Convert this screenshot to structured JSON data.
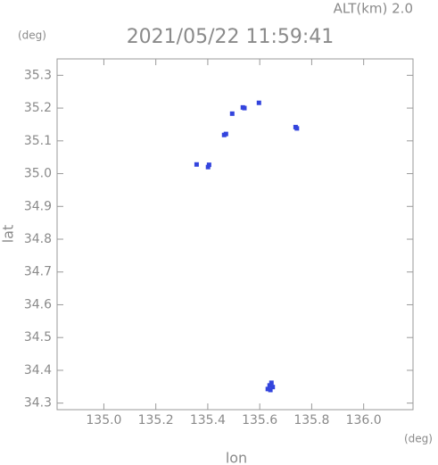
{
  "chart_data": {
    "type": "scatter",
    "title": "2021/05/22 11:59:41",
    "annotation": "ALT(km) 2.0",
    "y_unit": "(deg)",
    "x_unit": "(deg)",
    "xlabel": "lon",
    "ylabel": "lat",
    "xlim": [
      134.82,
      136.19
    ],
    "ylim": [
      34.28,
      35.35
    ],
    "xticks": [
      {
        "value": 135,
        "label": "135.0"
      },
      135.2,
      135.4,
      135.6,
      135.8,
      {
        "value": 136,
        "label": "136.0"
      }
    ],
    "yticks": [
      34.3,
      34.4,
      34.5,
      34.6,
      34.7,
      34.8,
      34.9,
      {
        "value": 35,
        "label": "35.0"
      },
      35.1,
      35.2,
      35.3
    ],
    "color": "#3344dd",
    "x": [
      135.357,
      135.401,
      135.405,
      135.463,
      135.47,
      135.494,
      135.535,
      135.541,
      135.597,
      135.738,
      135.743,
      135.631,
      135.638,
      135.645,
      135.65,
      135.641
    ],
    "y": [
      35.028,
      35.02,
      35.027,
      35.118,
      35.121,
      35.183,
      35.202,
      35.2,
      35.216,
      35.142,
      35.138,
      34.343,
      34.354,
      34.362,
      34.349,
      34.34
    ]
  }
}
